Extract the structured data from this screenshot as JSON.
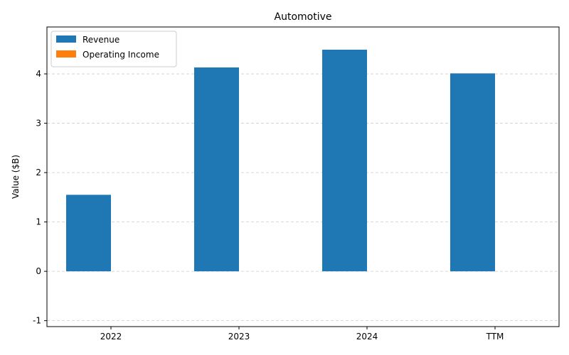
{
  "chart_data": {
    "type": "bar",
    "title": "Automotive",
    "xlabel": "",
    "ylabel": "Value ($B)",
    "categories": [
      "2022",
      "2023",
      "2024",
      "TTM"
    ],
    "ylim": [
      -1.12,
      4.95
    ],
    "yticks": [
      -1,
      0,
      1,
      2,
      3,
      4
    ],
    "grid": "y-dashed",
    "legend_position": "top-left",
    "series": [
      {
        "name": "Revenue",
        "color": "#1f77b4",
        "values": [
          1.55,
          4.13,
          4.49,
          4.01
        ]
      },
      {
        "name": "Operating Income",
        "color": "#ff7f0e",
        "values": [
          0,
          0,
          0,
          0
        ]
      }
    ]
  }
}
